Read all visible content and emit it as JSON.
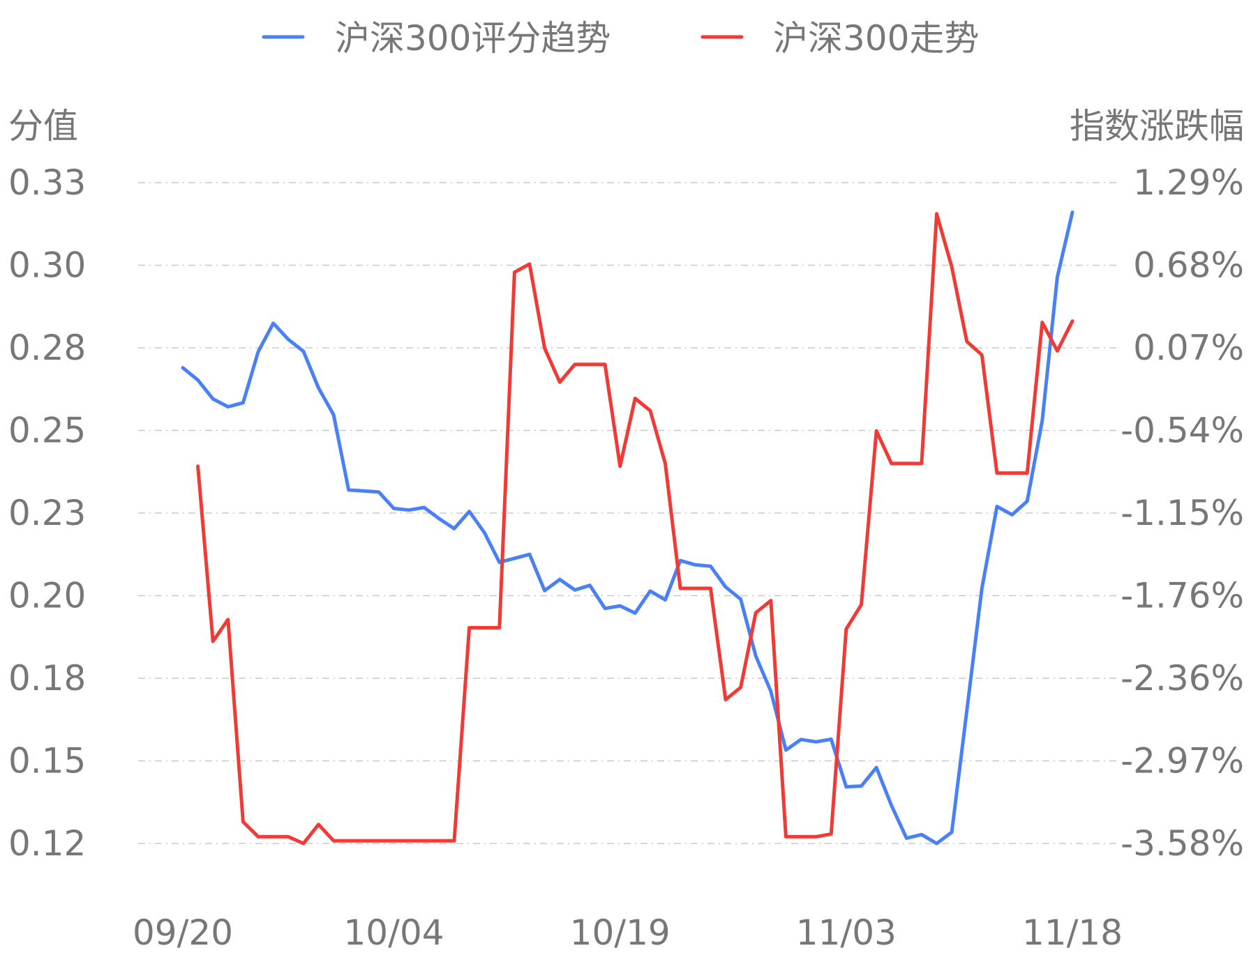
{
  "chart_data": {
    "type": "line",
    "x": [
      "09/20",
      "09/21",
      "09/22",
      "09/23",
      "09/24",
      "09/25",
      "09/26",
      "09/27",
      "09/28",
      "09/29",
      "09/30",
      "10/01",
      "10/02",
      "10/03",
      "10/04",
      "10/05",
      "10/06",
      "10/07",
      "10/08",
      "10/09",
      "10/10",
      "10/11",
      "10/12",
      "10/13",
      "10/14",
      "10/15",
      "10/16",
      "10/17",
      "10/18",
      "10/19",
      "10/20",
      "10/21",
      "10/22",
      "10/23",
      "10/24",
      "10/25",
      "10/26",
      "10/27",
      "10/28",
      "10/29",
      "10/30",
      "10/31",
      "11/01",
      "11/02",
      "11/03",
      "11/04",
      "11/05",
      "11/06",
      "11/07",
      "11/08",
      "11/09",
      "11/10",
      "11/11",
      "11/12",
      "11/13",
      "11/14",
      "11/15",
      "11/16",
      "11/17",
      "11/18"
    ],
    "xticks": [
      "09/20",
      "10/04",
      "10/19",
      "11/03",
      "11/18"
    ],
    "legend": {
      "position": "top"
    },
    "left_axis": {
      "title": "分值",
      "ticks": [
        "0.33",
        "0.30",
        "0.28",
        "0.25",
        "0.23",
        "0.20",
        "0.18",
        "0.15",
        "0.12"
      ],
      "range": [
        0.1195,
        0.3197
      ]
    },
    "right_axis": {
      "title": "指数涨跌幅",
      "ticks": [
        "1.29%",
        "0.68%",
        "0.07%",
        "-0.54%",
        "-1.15%",
        "-1.76%",
        "-2.36%",
        "-2.97%",
        "-3.58%"
      ],
      "range": [
        -3.58,
        1.29
      ]
    },
    "series": [
      {
        "name": "沪深300评分趋势",
        "axis": "left",
        "color": "#4a80f5",
        "values": [
          0.2636,
          0.2599,
          0.2542,
          0.2518,
          0.253,
          0.2685,
          0.2771,
          0.2722,
          0.2686,
          0.2575,
          0.2494,
          0.2266,
          0.2263,
          0.226,
          0.221,
          0.2205,
          0.2213,
          0.2179,
          0.2149,
          0.2201,
          0.2137,
          0.2047,
          0.2059,
          0.2071,
          0.1961,
          0.1995,
          0.1963,
          0.1977,
          0.1907,
          0.1915,
          0.1893,
          0.196,
          0.1933,
          0.2052,
          0.2039,
          0.2035,
          0.1972,
          0.1935,
          0.1763,
          0.1656,
          0.1478,
          0.151,
          0.1503,
          0.1511,
          0.1367,
          0.1369,
          0.1425,
          0.131,
          0.1211,
          0.1222,
          0.1195,
          0.1229,
          0.1597,
          0.1968,
          0.2216,
          0.2191,
          0.2232,
          0.2476,
          0.2911,
          0.3107
        ]
      },
      {
        "name": "沪深300走势",
        "axis": "right",
        "color": "#f03a36",
        "values": [
          null,
          -0.8,
          -2.09,
          -1.93,
          -3.42,
          -3.53,
          -3.53,
          -3.53,
          -3.58,
          -3.44,
          -3.56,
          -3.56,
          -3.56,
          -3.56,
          -3.56,
          -3.56,
          -3.56,
          -3.56,
          -3.56,
          -1.99,
          -1.99,
          -1.99,
          0.63,
          0.69,
          0.07,
          -0.18,
          -0.05,
          -0.05,
          -0.05,
          -0.8,
          -0.3,
          -0.39,
          -0.78,
          -1.7,
          -1.7,
          -1.7,
          -2.52,
          -2.43,
          -1.88,
          -1.79,
          -3.53,
          -3.53,
          -3.53,
          -3.51,
          -2.0,
          -1.82,
          -0.54,
          -0.78,
          -0.78,
          -0.78,
          1.06,
          0.67,
          0.12,
          0.02,
          -0.85,
          -0.85,
          -0.85,
          0.26,
          0.05,
          0.27
        ]
      }
    ]
  }
}
